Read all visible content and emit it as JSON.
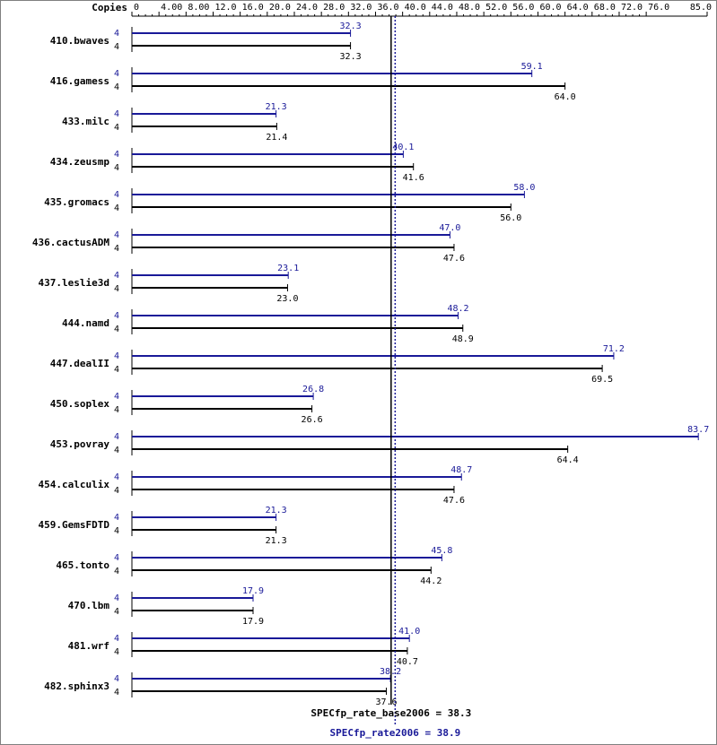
{
  "chart_data": {
    "type": "bar",
    "axis_label": "Copies",
    "ticks": [
      0,
      4,
      8,
      12,
      16,
      20,
      24,
      28,
      32,
      36,
      40,
      44,
      48,
      52,
      56,
      60,
      64,
      68,
      72,
      76,
      85
    ],
    "tick_labels": [
      "0",
      "4.00",
      "8.00",
      "12.0",
      "16.0",
      "20.0",
      "24.0",
      "28.0",
      "32.0",
      "36.0",
      "40.0",
      "44.0",
      "48.0",
      "52.0",
      "56.0",
      "60.0",
      "64.0",
      "68.0",
      "72.0",
      "76.0",
      "85.0"
    ],
    "xlim": [
      0,
      85
    ],
    "colors": {
      "peak": "#191998",
      "base": "#000000"
    },
    "benchmarks": [
      {
        "name": "410.bwaves",
        "peak_copies": "4",
        "peak": 32.3,
        "peak_label": "32.3",
        "base_copies": "4",
        "base": 32.3,
        "base_label": "32.3"
      },
      {
        "name": "416.gamess",
        "peak_copies": "4",
        "peak": 59.1,
        "peak_label": "59.1",
        "base_copies": "4",
        "base": 64.0,
        "base_label": "64.0"
      },
      {
        "name": "433.milc",
        "peak_copies": "4",
        "peak": 21.3,
        "peak_label": "21.3",
        "base_copies": "4",
        "base": 21.4,
        "base_label": "21.4"
      },
      {
        "name": "434.zeusmp",
        "peak_copies": "4",
        "peak": 40.1,
        "peak_label": "40.1",
        "base_copies": "4",
        "base": 41.6,
        "base_label": "41.6"
      },
      {
        "name": "435.gromacs",
        "peak_copies": "4",
        "peak": 58.0,
        "peak_label": "58.0",
        "base_copies": "4",
        "base": 56.0,
        "base_label": "56.0"
      },
      {
        "name": "436.cactusADM",
        "peak_copies": "4",
        "peak": 47.0,
        "peak_label": "47.0",
        "base_copies": "4",
        "base": 47.6,
        "base_label": "47.6"
      },
      {
        "name": "437.leslie3d",
        "peak_copies": "4",
        "peak": 23.1,
        "peak_label": "23.1",
        "base_copies": "4",
        "base": 23.0,
        "base_label": "23.0"
      },
      {
        "name": "444.namd",
        "peak_copies": "4",
        "peak": 48.2,
        "peak_label": "48.2",
        "base_copies": "4",
        "base": 48.9,
        "base_label": "48.9"
      },
      {
        "name": "447.dealII",
        "peak_copies": "4",
        "peak": 71.2,
        "peak_label": "71.2",
        "base_copies": "4",
        "base": 69.5,
        "base_label": "69.5"
      },
      {
        "name": "450.soplex",
        "peak_copies": "4",
        "peak": 26.8,
        "peak_label": "26.8",
        "base_copies": "4",
        "base": 26.6,
        "base_label": "26.6"
      },
      {
        "name": "453.povray",
        "peak_copies": "4",
        "peak": 83.7,
        "peak_label": "83.7",
        "base_copies": "4",
        "base": 64.4,
        "base_label": "64.4"
      },
      {
        "name": "454.calculix",
        "peak_copies": "4",
        "peak": 48.7,
        "peak_label": "48.7",
        "base_copies": "4",
        "base": 47.6,
        "base_label": "47.6"
      },
      {
        "name": "459.GemsFDTD",
        "peak_copies": "4",
        "peak": 21.3,
        "peak_label": "21.3",
        "base_copies": "4",
        "base": 21.3,
        "base_label": "21.3"
      },
      {
        "name": "465.tonto",
        "peak_copies": "4",
        "peak": 45.8,
        "peak_label": "45.8",
        "base_copies": "4",
        "base": 44.2,
        "base_label": "44.2"
      },
      {
        "name": "470.lbm",
        "peak_copies": "4",
        "peak": 17.9,
        "peak_label": "17.9",
        "base_copies": "4",
        "base": 17.9,
        "base_label": "17.9"
      },
      {
        "name": "481.wrf",
        "peak_copies": "4",
        "peak": 41.0,
        "peak_label": "41.0",
        "base_copies": "4",
        "base": 40.7,
        "base_label": "40.7"
      },
      {
        "name": "482.sphinx3",
        "peak_copies": "4",
        "peak": 38.2,
        "peak_label": "38.2",
        "base_copies": "4",
        "base": 37.6,
        "base_label": "37.6"
      }
    ],
    "summary": {
      "base_value": 38.3,
      "base_label": "SPECfp_rate_base2006 = 38.3",
      "peak_value": 38.9,
      "peak_label": "SPECfp_rate2006 = 38.9"
    }
  }
}
